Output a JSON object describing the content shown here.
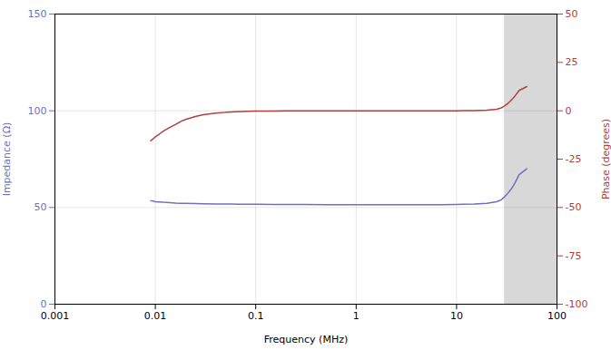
{
  "chart_data": {
    "type": "line",
    "xlabel": "Frequency (MHz)",
    "ylabel": "Impedance (Ω)",
    "y2label": "Phase (degrees)",
    "log": "x",
    "grid": true,
    "xlim": [
      0.001,
      100
    ],
    "xticks": [
      0.001,
      0.01,
      0.1,
      1,
      10,
      100
    ],
    "ylim": [
      0,
      150
    ],
    "yticks": [
      0,
      50,
      100,
      150
    ],
    "y2lim": [
      -100,
      50
    ],
    "y2ticks": [
      -100,
      -75,
      -50,
      -25,
      0,
      25,
      50
    ],
    "shaded_region": {
      "start": 30,
      "end": 100,
      "color": "#d8d8d8"
    },
    "x": [
      0.009,
      0.0095,
      0.01,
      0.011,
      0.012,
      0.014,
      0.016,
      0.018,
      0.02,
      0.025,
      0.03,
      0.04,
      0.05,
      0.07,
      0.1,
      0.15,
      0.2,
      0.3,
      0.5,
      0.7,
      1.0,
      1.5,
      2.0,
      3.0,
      5.0,
      7.0,
      10.0,
      15.0,
      20.0,
      25.0,
      28.0,
      30.0,
      32.0,
      35.0,
      38.0,
      42.0,
      50.0
    ],
    "series": [
      {
        "color": "#7070bb",
        "axis": "y",
        "values": [
          53.5,
          53.3,
          53.0,
          52.9,
          52.7,
          52.5,
          52.3,
          52.2,
          52.1,
          52.0,
          51.9,
          51.8,
          51.8,
          51.7,
          51.7,
          51.6,
          51.6,
          51.6,
          51.5,
          51.5,
          51.5,
          51.5,
          51.5,
          51.5,
          51.5,
          51.5,
          51.6,
          51.8,
          52.2,
          53.0,
          54.0,
          55.5,
          57.0,
          59.5,
          62.5,
          67.0,
          70.0
        ]
      },
      {
        "color": "#b04040",
        "axis": "y2",
        "values": [
          -15.5,
          -14.5,
          -13.5,
          -12.0,
          -10.5,
          -8.5,
          -7.0,
          -5.5,
          -4.5,
          -3.0,
          -2.0,
          -1.2,
          -0.8,
          -0.4,
          -0.2,
          -0.1,
          -0.08,
          -0.06,
          -0.05,
          -0.04,
          -0.03,
          -0.02,
          -0.02,
          -0.02,
          -0.02,
          -0.01,
          0.0,
          0.1,
          0.3,
          0.8,
          1.5,
          2.5,
          3.5,
          5.5,
          7.5,
          10.5,
          12.5
        ]
      }
    ]
  }
}
